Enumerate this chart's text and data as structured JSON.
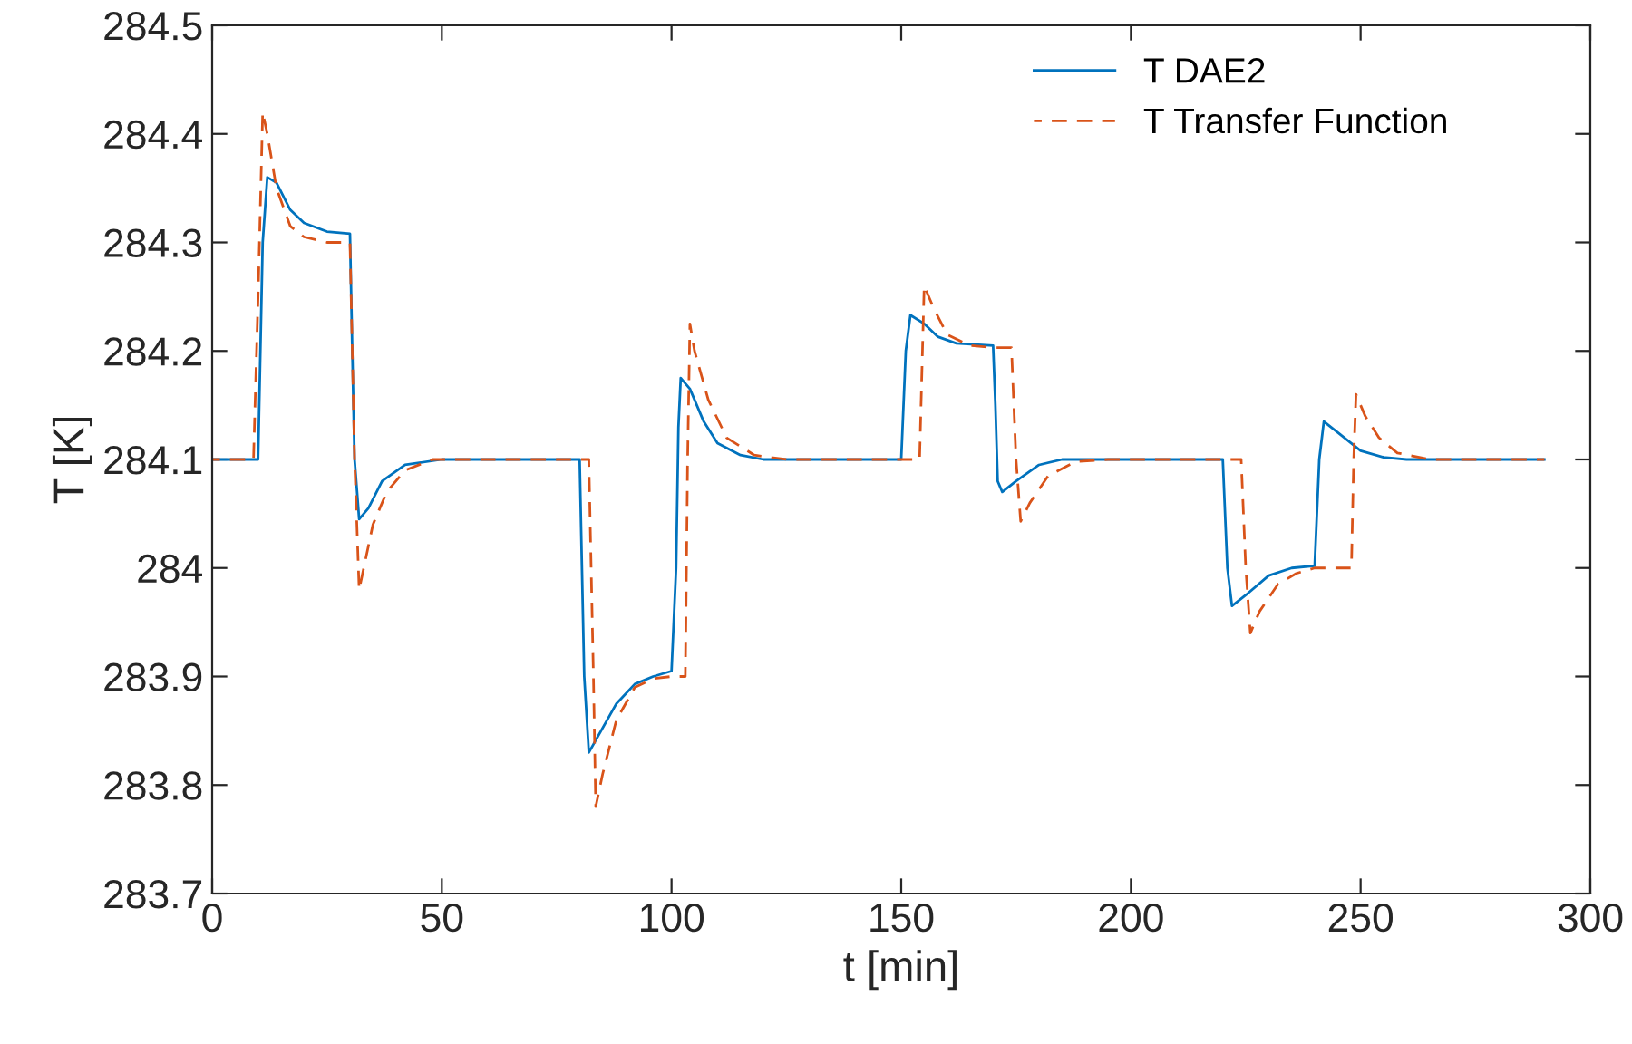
{
  "chart_data": {
    "type": "line",
    "xlabel": "t [min]",
    "ylabel": "T [K]",
    "xlim": [
      0,
      300
    ],
    "xticks": [
      0,
      50,
      100,
      150,
      200,
      250,
      300
    ],
    "ylim": [
      283.7,
      284.5
    ],
    "yticks": [
      283.7,
      283.8,
      283.9,
      284,
      284.1,
      284.2,
      284.3,
      284.4,
      284.5
    ],
    "grid": false,
    "legend": "top right",
    "series": [
      {
        "name": "T DAE2",
        "color": "#0072bd",
        "line_style": "solid",
        "x": [
          0,
          10,
          11,
          12,
          14,
          17,
          20,
          25,
          30,
          30.5,
          31,
          32,
          34,
          37,
          42,
          50,
          80,
          81,
          82,
          84,
          88,
          92,
          96,
          100,
          101,
          101.5,
          102,
          104,
          107,
          110,
          115,
          120,
          150,
          151,
          152,
          155,
          158,
          162,
          170,
          170.5,
          171,
          172,
          175,
          180,
          185,
          220,
          221,
          222,
          225,
          230,
          235,
          240,
          241,
          242,
          245,
          250,
          255,
          260,
          290
        ],
        "values": [
          284.1,
          284.1,
          284.3,
          284.36,
          284.355,
          284.33,
          284.318,
          284.31,
          284.308,
          284.2,
          284.1,
          284.045,
          284.055,
          284.08,
          284.095,
          284.1,
          284.1,
          283.9,
          283.83,
          283.845,
          283.875,
          283.893,
          283.9,
          283.905,
          284.0,
          284.13,
          284.175,
          284.165,
          284.135,
          284.115,
          284.104,
          284.1,
          284.1,
          284.2,
          284.233,
          284.225,
          284.213,
          284.207,
          284.205,
          284.15,
          284.08,
          284.07,
          284.08,
          284.095,
          284.1,
          284.1,
          284.0,
          283.965,
          283.975,
          283.993,
          284.0,
          284.002,
          284.1,
          284.135,
          284.125,
          284.108,
          284.102,
          284.1,
          284.1
        ]
      },
      {
        "name": "T Transfer Function",
        "color": "#d95319",
        "line_style": "dashed",
        "x": [
          0,
          9,
          10,
          11,
          12,
          14,
          17,
          20,
          25,
          30,
          31,
          32,
          33,
          35,
          38,
          42,
          48,
          82,
          83,
          83.5,
          85,
          88,
          92,
          96,
          100,
          103,
          103.5,
          104,
          105,
          108,
          112,
          118,
          125,
          154,
          155,
          157,
          160,
          165,
          170,
          174,
          175,
          176,
          178,
          182,
          188,
          195,
          224,
          225,
          226,
          228,
          232,
          236,
          240,
          248,
          248.5,
          249,
          251,
          254,
          258,
          265,
          290
        ],
        "values": [
          284.1,
          284.1,
          284.25,
          284.42,
          284.4,
          284.35,
          284.315,
          284.305,
          284.3,
          284.3,
          284.1,
          283.98,
          284.0,
          284.04,
          284.07,
          284.09,
          284.1,
          284.1,
          283.9,
          283.78,
          283.81,
          283.86,
          283.89,
          283.898,
          283.9,
          283.9,
          284.1,
          284.225,
          284.2,
          284.155,
          284.12,
          284.104,
          284.1,
          284.1,
          284.26,
          284.24,
          284.215,
          284.205,
          284.203,
          284.203,
          284.1,
          284.043,
          284.06,
          284.085,
          284.098,
          284.1,
          284.1,
          284.0,
          283.94,
          283.96,
          283.985,
          283.995,
          284.0,
          284.0,
          284.1,
          284.16,
          284.14,
          284.12,
          284.106,
          284.1,
          284.1
        ]
      }
    ]
  }
}
